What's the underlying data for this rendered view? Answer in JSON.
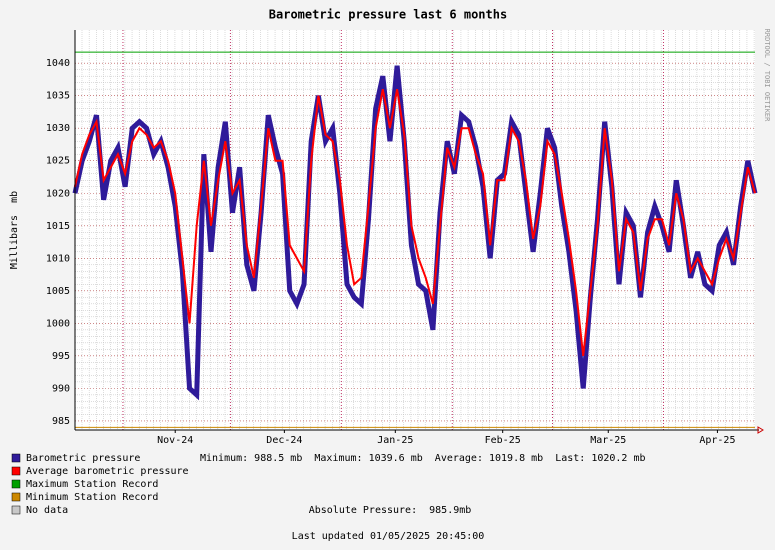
{
  "chart_data": {
    "type": "line",
    "title": "Barometric pressure last 6 months",
    "y_label": "Millibars  mb",
    "side_text": "RRDTOOL / TOBI OETIKER",
    "x": [
      0,
      2,
      4,
      6,
      8,
      10,
      12,
      14,
      16,
      18,
      20,
      22,
      24,
      26,
      28,
      30,
      32,
      34,
      36,
      38,
      40,
      42,
      44,
      46,
      48,
      50,
      52,
      54,
      56,
      58,
      60,
      62,
      64,
      66,
      68,
      70,
      72,
      74,
      76,
      78,
      80,
      82,
      84,
      86,
      88,
      90,
      92,
      94,
      96,
      98,
      100,
      102,
      104,
      106,
      108,
      110,
      112,
      114,
      116,
      118,
      120,
      122,
      124,
      126,
      128,
      130,
      132,
      134,
      136,
      138,
      140,
      142,
      144,
      146,
      148,
      150,
      152,
      154,
      156,
      158,
      160,
      162,
      164,
      166,
      168,
      170,
      172,
      174,
      176,
      178,
      180,
      182,
      184,
      186,
      188,
      190
    ],
    "series": [
      {
        "name": "Barometric pressure",
        "color": "#2f1b9a",
        "width": 5,
        "values": [
          1020,
          1025,
          1028,
          1032,
          1019,
          1025,
          1027,
          1021,
          1030,
          1031,
          1030,
          1026,
          1028,
          1024,
          1018,
          1008,
          990,
          989,
          1026,
          1011,
          1024,
          1031,
          1017,
          1024,
          1009,
          1005,
          1017,
          1032,
          1027,
          1023,
          1005,
          1003,
          1006,
          1028,
          1035,
          1028,
          1030,
          1020,
          1006,
          1004,
          1003,
          1016,
          1033,
          1038,
          1028,
          1039.6,
          1028,
          1012,
          1006,
          1005,
          999,
          1017,
          1028,
          1023,
          1032,
          1031,
          1027,
          1021,
          1010,
          1022,
          1023,
          1031,
          1029,
          1020,
          1011,
          1020,
          1030,
          1027,
          1018,
          1011,
          1002,
          990,
          1004,
          1016,
          1031,
          1021,
          1006,
          1017,
          1015,
          1004,
          1014,
          1018,
          1015,
          1011,
          1022,
          1015,
          1007,
          1011,
          1006,
          1005,
          1012,
          1014,
          1009,
          1018,
          1025,
          1020
        ]
      },
      {
        "name": "Average barometric pressure",
        "color": "#ff0000",
        "width": 2,
        "values": [
          1021,
          1026,
          1029,
          1031,
          1022,
          1024,
          1026,
          1023,
          1028,
          1030,
          1029,
          1027,
          1028,
          1025,
          1020,
          1010,
          1000,
          1015,
          1025,
          1015,
          1022,
          1028,
          1020,
          1022,
          1012,
          1007,
          1018,
          1030,
          1025,
          1025,
          1012,
          1010,
          1008,
          1025,
          1035,
          1029,
          1028,
          1022,
          1012,
          1006,
          1007,
          1018,
          1030,
          1036,
          1030,
          1036,
          1029,
          1015,
          1010,
          1007,
          1003,
          1015,
          1027,
          1024,
          1030,
          1030,
          1026,
          1023,
          1012,
          1022,
          1022,
          1030,
          1028,
          1022,
          1013,
          1018,
          1028,
          1026,
          1020,
          1013,
          1005,
          995,
          1005,
          1015,
          1030,
          1022,
          1008,
          1016,
          1014,
          1005,
          1013,
          1016,
          1016,
          1012,
          1020,
          1016,
          1008,
          1010,
          1008,
          1006,
          1010,
          1013,
          1010,
          1017,
          1024,
          1020
        ]
      }
    ],
    "reference_lines": [
      {
        "name": "Maximum Station Record",
        "color": "#00a000",
        "value": 1041.7
      },
      {
        "name": "Minimum Station Record",
        "color": "#cc8800",
        "value": 984
      }
    ],
    "no_data": {
      "name": "No data",
      "color": "#c8c8c8"
    },
    "xlim": [
      0,
      190
    ],
    "xticks": [
      {
        "value": 28,
        "label": "Nov-24"
      },
      {
        "value": 58.5,
        "label": "Dec-24"
      },
      {
        "value": 89.5,
        "label": "Jan-25"
      },
      {
        "value": 119.5,
        "label": "Feb-25"
      },
      {
        "value": 149,
        "label": "Mar-25"
      },
      {
        "value": 179.5,
        "label": "Apr-25"
      }
    ],
    "month_lines": [
      13.4,
      43.4,
      74.4,
      105.4,
      133.4,
      164.4
    ],
    "ylim": [
      983.6,
      1045.1
    ],
    "yticks": [
      985,
      990,
      995,
      1000,
      1005,
      1010,
      1015,
      1020,
      1025,
      1030,
      1035,
      1040
    ],
    "grid": true,
    "stats": "Minimum: 988.5 mb  Maximum: 1039.6 mb  Average: 1019.8 mb  Last: 1020.2 mb",
    "absolute_pressure": "Absolute Pressure:  985.9mb",
    "last_updated": "Last updated 01/05/2025 20:45:00"
  }
}
